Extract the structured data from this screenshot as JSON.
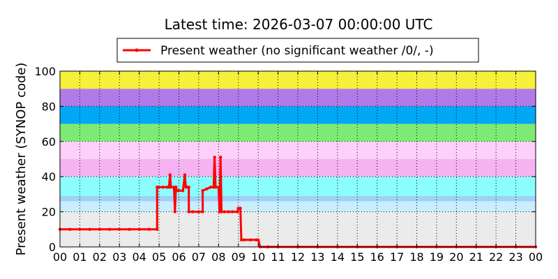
{
  "chart_data": {
    "type": "line",
    "title": "Latest time: 2026-03-07 00:00:00 UTC",
    "ylabel": "Present weather (SYNOP code)",
    "xlabel": "",
    "xlim": [
      0,
      24
    ],
    "ylim": [
      0,
      100
    ],
    "y_ticks": [
      0,
      20,
      40,
      60,
      80,
      100
    ],
    "x_ticks": [
      0,
      1,
      2,
      3,
      4,
      5,
      6,
      7,
      8,
      9,
      10,
      11,
      12,
      13,
      14,
      15,
      16,
      17,
      18,
      19,
      20,
      21,
      22,
      23,
      24
    ],
    "x_tick_labels": [
      "00",
      "01",
      "02",
      "03",
      "04",
      "05",
      "06",
      "07",
      "08",
      "09",
      "10",
      "11",
      "12",
      "13",
      "14",
      "15",
      "16",
      "17",
      "18",
      "19",
      "20",
      "21",
      "22",
      "23",
      "00"
    ],
    "grid": true,
    "grid_style": "dotted",
    "legend_position": "top-center",
    "background_bands": [
      {
        "from": 0,
        "to": 20,
        "color": "#ebebeb"
      },
      {
        "from": 20,
        "to": 26,
        "color": "#c8eeff"
      },
      {
        "from": 26,
        "to": 29,
        "color": "#a0d0f8"
      },
      {
        "from": 29,
        "to": 40,
        "color": "#8cfdfd"
      },
      {
        "from": 40,
        "to": 50,
        "color": "#f5b3f2"
      },
      {
        "from": 50,
        "to": 60,
        "color": "#fdd0fa"
      },
      {
        "from": 60,
        "to": 70,
        "color": "#7deb73"
      },
      {
        "from": 70,
        "to": 80,
        "color": "#00a8f5"
      },
      {
        "from": 80,
        "to": 90,
        "color": "#b27ae8"
      },
      {
        "from": 90,
        "to": 100,
        "color": "#f5f03a"
      }
    ],
    "series": [
      {
        "name": "Present weather (no significant weather /0/, -)",
        "color": "#ff0000",
        "x": [
          0.0,
          0.5,
          1.0,
          1.5,
          2.0,
          2.5,
          3.0,
          3.5,
          4.0,
          4.5,
          4.9,
          4.9,
          5.0,
          5.2,
          5.4,
          5.5,
          5.55,
          5.6,
          5.75,
          5.8,
          5.85,
          5.9,
          6.0,
          6.2,
          6.3,
          6.35,
          6.4,
          6.5,
          6.5,
          6.7,
          7.0,
          7.2,
          7.2,
          7.4,
          7.6,
          7.75,
          7.8,
          7.85,
          8.0,
          8.05,
          8.1,
          8.15,
          8.3,
          8.5,
          8.7,
          8.95,
          9.0,
          9.1,
          9.15,
          9.3,
          9.6,
          9.9,
          10.0,
          10.1,
          10.5,
          11,
          12,
          13,
          14,
          15,
          16,
          17,
          18,
          19,
          20,
          21,
          22,
          23,
          24
        ],
        "y": [
          10,
          10,
          10,
          10,
          10,
          10,
          10,
          10,
          10,
          10,
          10,
          34,
          34,
          34,
          34,
          34,
          41,
          34,
          34,
          20,
          34,
          32,
          32,
          32,
          41,
          34,
          34,
          34,
          20,
          20,
          20,
          20,
          32,
          33,
          34,
          34,
          51,
          34,
          34,
          20,
          51,
          20,
          20,
          20,
          20,
          20,
          22,
          22,
          4,
          4,
          4,
          4,
          4,
          0,
          0,
          0,
          0,
          0,
          0,
          0,
          0,
          0,
          0,
          0,
          0,
          0,
          0,
          0,
          0
        ]
      }
    ]
  }
}
